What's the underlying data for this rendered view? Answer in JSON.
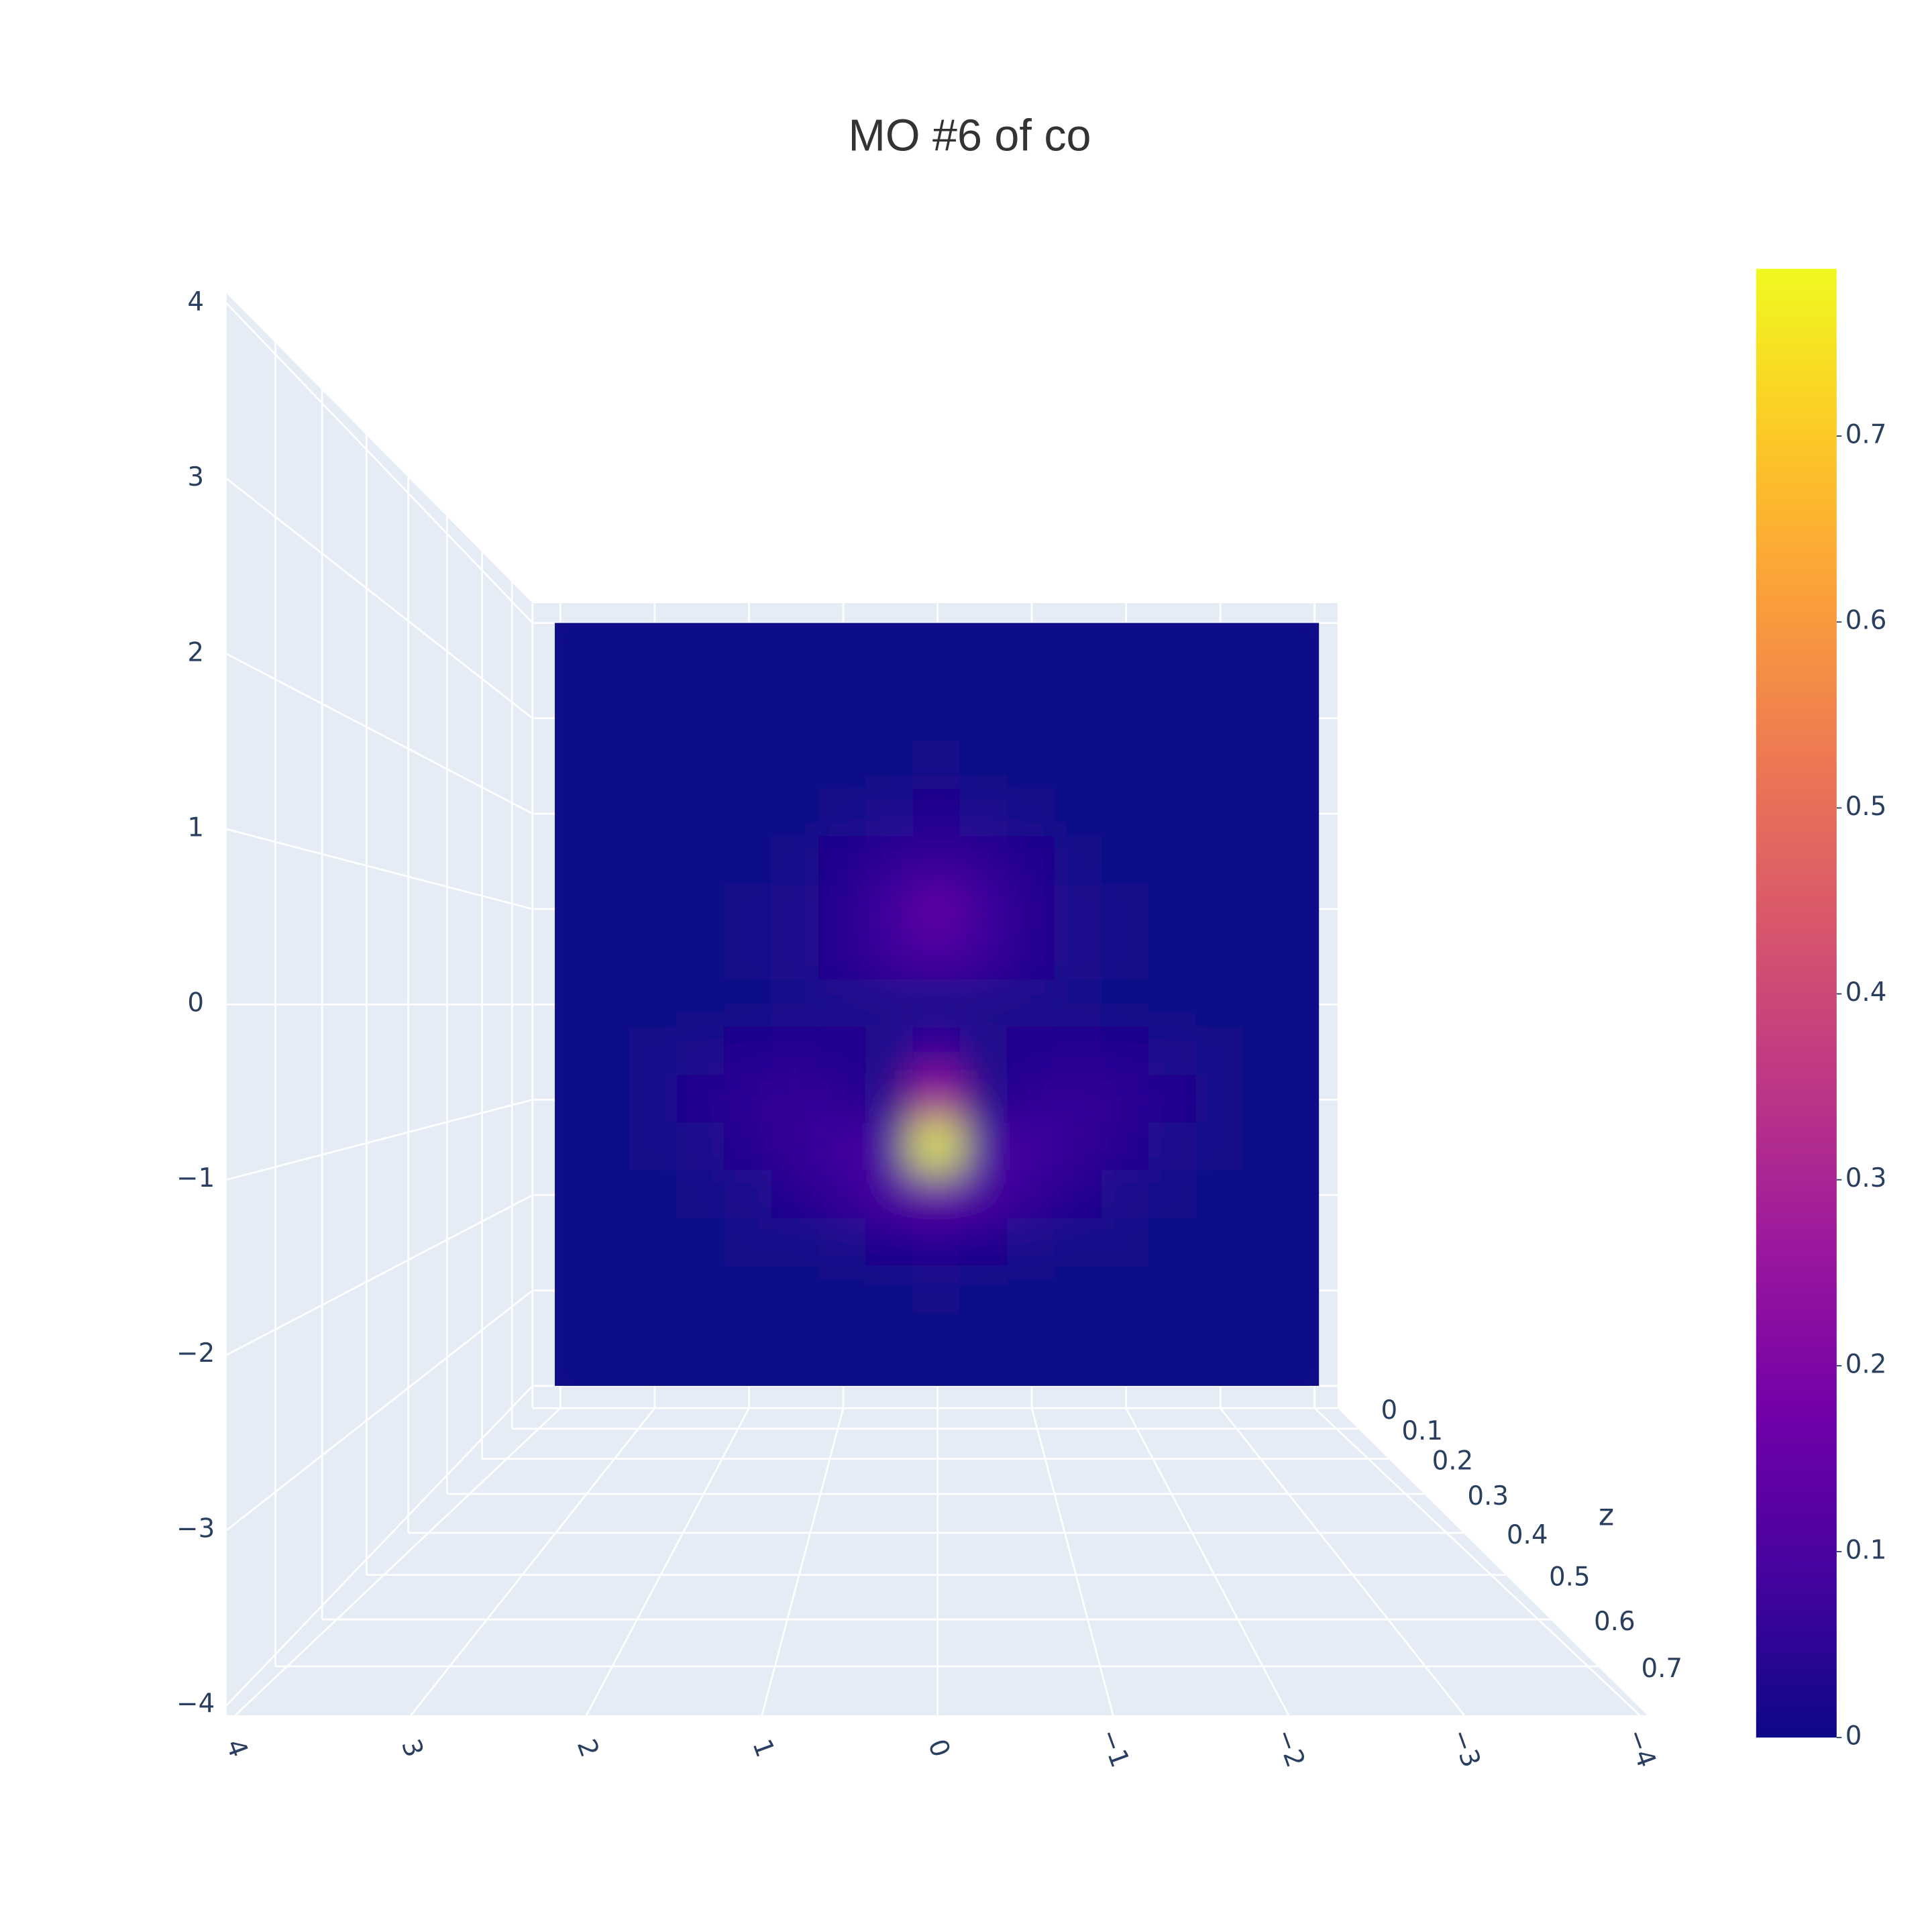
{
  "chart_data": {
    "type": "surface",
    "title": "MO #6 of co",
    "x": [
      4,
      3.5,
      3,
      2.5,
      2,
      1.5,
      1,
      0.5,
      0,
      -0.5,
      -1,
      -1.5,
      -2,
      -2.5,
      -3,
      -3.5,
      -4
    ],
    "y": [
      4,
      3.5,
      3,
      2.5,
      2,
      1.5,
      1,
      0.5,
      0,
      -0.5,
      -1,
      -1.5,
      -2,
      -2.5,
      -3,
      -3.5,
      -4
    ],
    "z": [
      [
        0,
        0,
        0,
        0,
        0,
        0,
        0,
        0,
        0,
        0,
        0,
        0,
        0,
        0,
        0,
        0,
        0
      ],
      [
        0,
        0,
        0,
        0,
        0,
        0,
        0,
        0,
        0,
        0,
        0,
        0,
        0,
        0,
        0,
        0,
        0
      ],
      [
        0,
        0,
        0,
        0,
        0,
        0,
        0,
        0,
        0,
        0,
        0,
        0,
        0,
        0,
        0,
        0,
        0
      ],
      [
        0,
        0,
        0,
        0,
        0,
        0,
        0,
        0,
        0.01,
        0,
        0,
        0,
        0,
        0,
        0,
        0,
        0
      ],
      [
        0,
        0,
        0,
        0,
        0,
        0,
        0.01,
        0.02,
        0.03,
        0.02,
        0.01,
        0,
        0,
        0,
        0,
        0,
        0
      ],
      [
        0,
        0,
        0,
        0,
        0,
        0.01,
        0.03,
        0.05,
        0.06,
        0.05,
        0.03,
        0.01,
        0,
        0,
        0,
        0,
        0
      ],
      [
        0,
        0,
        0,
        0,
        0.01,
        0.02,
        0.04,
        0.08,
        0.15,
        0.08,
        0.04,
        0.02,
        0.01,
        0,
        0,
        0,
        0
      ],
      [
        0,
        0,
        0,
        0,
        0.01,
        0.02,
        0.04,
        0.07,
        0.1,
        0.07,
        0.04,
        0.02,
        0.01,
        0,
        0,
        0,
        0
      ],
      [
        0,
        0,
        0,
        0,
        0,
        0.01,
        0.02,
        0.02,
        0.01,
        0.02,
        0.02,
        0.01,
        0,
        0,
        0,
        0,
        0
      ],
      [
        0,
        0,
        0.01,
        0.02,
        0.03,
        0.04,
        0.03,
        0.02,
        0.08,
        0.02,
        0.03,
        0.04,
        0.03,
        0.02,
        0.01,
        0,
        0
      ],
      [
        0,
        0,
        0.01,
        0.03,
        0.05,
        0.06,
        0.05,
        0.02,
        0.3,
        0.02,
        0.05,
        0.06,
        0.05,
        0.03,
        0.01,
        0,
        0
      ],
      [
        0,
        0,
        0.01,
        0.02,
        0.04,
        0.06,
        0.08,
        0.1,
        0.79,
        0.1,
        0.08,
        0.06,
        0.04,
        0.02,
        0.01,
        0,
        0
      ],
      [
        0,
        0,
        0,
        0.01,
        0.02,
        0.04,
        0.06,
        0.1,
        0.15,
        0.1,
        0.06,
        0.04,
        0.02,
        0.01,
        0,
        0,
        0
      ],
      [
        0,
        0,
        0,
        0,
        0.01,
        0.01,
        0.02,
        0.03,
        0.04,
        0.03,
        0.02,
        0.01,
        0.01,
        0,
        0,
        0,
        0
      ],
      [
        0,
        0,
        0,
        0,
        0,
        0,
        0,
        0,
        0.01,
        0,
        0,
        0,
        0,
        0,
        0,
        0,
        0
      ],
      [
        0,
        0,
        0,
        0,
        0,
        0,
        0,
        0,
        0,
        0,
        0,
        0,
        0,
        0,
        0,
        0,
        0
      ],
      [
        0,
        0,
        0,
        0,
        0,
        0,
        0,
        0,
        0,
        0,
        0,
        0,
        0,
        0,
        0,
        0,
        0
      ]
    ],
    "xlim": [
      4,
      -4
    ],
    "xticks": [
      4,
      3,
      2,
      1,
      0,
      {
        "value": -1,
        "label": "−1"
      },
      {
        "value": -2,
        "label": "−2"
      },
      {
        "value": -3,
        "label": "−3"
      },
      {
        "value": -4,
        "label": "−4"
      }
    ],
    "ylim": [
      4,
      -4
    ],
    "yticks": [
      4,
      3,
      2,
      1,
      0,
      {
        "value": -1,
        "label": "−1"
      },
      {
        "value": -2,
        "label": "−2"
      },
      {
        "value": -3,
        "label": "−3"
      },
      {
        "value": -4,
        "label": "−4"
      }
    ],
    "zlim": [
      0,
      0.8
    ],
    "zticks": [
      0,
      0.1,
      0.2,
      0.3,
      0.4,
      0.5,
      0.6,
      0.7
    ],
    "zlabel": "z",
    "clim": [
      0,
      0.79
    ],
    "colorbar_ticks": [
      0,
      0.1,
      0.2,
      0.3,
      0.4,
      0.5,
      0.6,
      0.7
    ],
    "colorscale": [
      "#0d0887",
      "#46039f",
      "#7201a8",
      "#9c179e",
      "#bd3786",
      "#d8576b",
      "#ed7953",
      "#fb9f3a",
      "#fdca26",
      "#f0f921"
    ],
    "grid": true
  }
}
